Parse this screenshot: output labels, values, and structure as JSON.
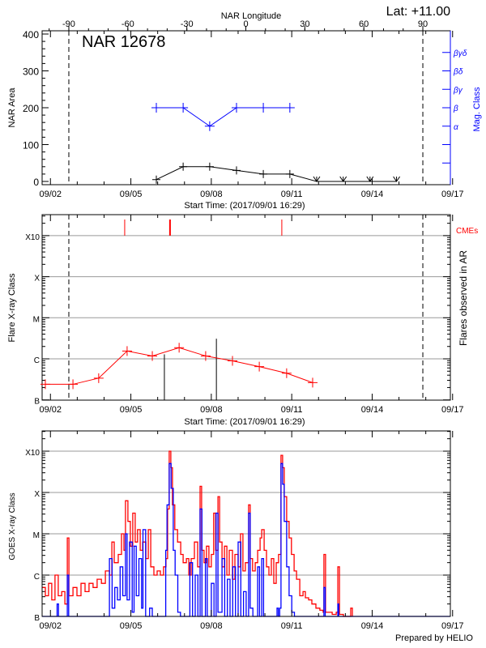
{
  "chart_data": [
    {
      "type": "line",
      "title": "NAR 12678",
      "corner_label": "Lat: +11.00",
      "top_axis_label": "NAR Longitude",
      "top_ticks": [
        "-90",
        "-60",
        "-30",
        "0",
        "30",
        "60",
        "90"
      ],
      "top_tick_values": [
        -90,
        -60,
        -30,
        0,
        30,
        60,
        90
      ],
      "xlabel": "Start Time: (2017/09/01 16:29)",
      "x_ticks": [
        "09/02",
        "09/05",
        "09/08",
        "09/11",
        "09/14",
        "09/17"
      ],
      "x_tick_days": [
        2,
        5,
        8,
        11,
        14,
        17
      ],
      "ylabel": "NAR Area",
      "y_ticks": [
        "0",
        "100",
        "200",
        "300",
        "400"
      ],
      "ylim": [
        0,
        400
      ],
      "y2label": "Mag. Class",
      "y2_ticks": [
        "α",
        "β",
        "βγ",
        "βδ",
        "βγδ"
      ],
      "limb_longitudes": [
        -90,
        90
      ],
      "colors": {
        "area": "#000000",
        "mag_class": "#0000ff"
      },
      "series": [
        {
          "x_day": [
            5.95,
            6.95,
            7.94,
            8.94,
            9.94,
            10.93,
            11.93,
            12.92,
            13.92,
            14.91
          ],
          "values": [
            5,
            40,
            40,
            30,
            20,
            20,
            0,
            0,
            0,
            0
          ]
        },
        {
          "x_day": [
            5.95,
            6.95,
            7.94,
            8.94,
            9.94,
            10.93
          ],
          "values": [
            "β",
            "β",
            "α",
            "β",
            "β",
            "β"
          ]
        }
      ]
    },
    {
      "type": "line",
      "xlabel": "Start Time: (2017/09/01 16:29)",
      "x_ticks": [
        "09/02",
        "09/05",
        "09/08",
        "09/11",
        "09/14",
        "09/17"
      ],
      "ylabel": "Flare X-ray Class",
      "y2label": "Flares observed in AR",
      "y_ticks": [
        "B",
        "C",
        "M",
        "X",
        "X10"
      ],
      "scale": "log",
      "grid": true,
      "cme_label": "CMEs",
      "colors": {
        "daily_max": "#ff0000",
        "flares": "#000000",
        "cmes": "#ff0000"
      },
      "daily_max": {
        "x_day": [
          1.81,
          2.84,
          3.8,
          4.86,
          5.8,
          6.8,
          7.79,
          8.79,
          9.79,
          10.81,
          11.78
        ],
        "log10_flux": [
          -6.62,
          -6.62,
          -6.47,
          -5.81,
          -5.93,
          -5.73,
          -5.93,
          -6.05,
          -6.19,
          -6.35,
          -6.58
        ]
      },
      "flares": {
        "x_day": [
          6.25,
          8.19
        ],
        "log10_flux": [
          -5.89,
          -5.51
        ]
      },
      "cmes": {
        "x_day": [
          4.77,
          6.46,
          10.63
        ],
        "strong": [
          false,
          true,
          false
        ]
      }
    },
    {
      "type": "line",
      "ylabel": "GOES X-ray Class",
      "x_ticks": [
        "09/02",
        "09/05",
        "09/08",
        "09/11",
        "09/14",
        "09/17"
      ],
      "y_ticks": [
        "B",
        "C",
        "M",
        "X",
        "X10"
      ],
      "scale": "log",
      "grid": true,
      "footer": "Prepared by HELIO",
      "colors": {
        "long": "#ff0000",
        "short": "#0000ff"
      },
      "long_channel": [
        [
          1.69,
          -6.3
        ],
        [
          1.81,
          -6.5
        ],
        [
          1.93,
          -6.2
        ],
        [
          2.05,
          -6.6
        ],
        [
          2.17,
          -6.0
        ],
        [
          2.29,
          -6.5
        ],
        [
          2.42,
          -6.4
        ],
        [
          2.54,
          -6.7
        ],
        [
          2.63,
          -5.1
        ],
        [
          2.69,
          -6.5
        ],
        [
          2.84,
          -6.3
        ],
        [
          2.99,
          -6.5
        ],
        [
          3.14,
          -6.2
        ],
        [
          3.29,
          -6.4
        ],
        [
          3.44,
          -6.2
        ],
        [
          3.59,
          -6.3
        ],
        [
          3.74,
          -6.1
        ],
        [
          3.9,
          -6.2
        ],
        [
          4.05,
          -5.9
        ],
        [
          4.2,
          -6.0
        ],
        [
          4.29,
          -5.2
        ],
        [
          4.38,
          -5.7
        ],
        [
          4.53,
          -5.5
        ],
        [
          4.65,
          -5.0
        ],
        [
          4.74,
          -5.4
        ],
        [
          4.8,
          -4.2
        ],
        [
          4.89,
          -4.7
        ],
        [
          4.98,
          -5.3
        ],
        [
          5.07,
          -4.5
        ],
        [
          5.16,
          -5.2
        ],
        [
          5.25,
          -4.9
        ],
        [
          5.35,
          -5.4
        ],
        [
          5.44,
          -5.2
        ],
        [
          5.56,
          -5.6
        ],
        [
          5.65,
          -4.9
        ],
        [
          5.74,
          -5.8
        ],
        [
          5.86,
          -6.0
        ],
        [
          5.98,
          -5.9
        ],
        [
          6.1,
          -6.0
        ],
        [
          6.22,
          -5.8
        ],
        [
          6.31,
          -5.6
        ],
        [
          6.37,
          -4.4
        ],
        [
          6.43,
          -3.0
        ],
        [
          6.49,
          -3.4
        ],
        [
          6.55,
          -4.3
        ],
        [
          6.64,
          -4.9
        ],
        [
          6.74,
          -5.2
        ],
        [
          6.86,
          -5.5
        ],
        [
          6.95,
          -5.7
        ],
        [
          7.07,
          -5.6
        ],
        [
          7.16,
          -6.0
        ],
        [
          7.25,
          -5.6
        ],
        [
          7.37,
          -5.2
        ],
        [
          7.49,
          -5.8
        ],
        [
          7.58,
          -3.85
        ],
        [
          7.64,
          -5.4
        ],
        [
          7.73,
          -5.7
        ],
        [
          7.82,
          -5.3
        ],
        [
          7.91,
          -5.8
        ],
        [
          8.0,
          -5.5
        ],
        [
          8.09,
          -4.5
        ],
        [
          8.16,
          -5.4
        ],
        [
          8.25,
          -4.1
        ],
        [
          8.31,
          -5.2
        ],
        [
          8.4,
          -5.8
        ],
        [
          8.49,
          -5.3
        ],
        [
          8.58,
          -6.0
        ],
        [
          8.67,
          -5.4
        ],
        [
          8.79,
          -6.1
        ],
        [
          8.88,
          -5.5
        ],
        [
          9.0,
          -5.8
        ],
        [
          9.09,
          -5.0
        ],
        [
          9.18,
          -5.9
        ],
        [
          9.27,
          -5.7
        ],
        [
          9.39,
          -4.3
        ],
        [
          9.45,
          -5.6
        ],
        [
          9.54,
          -5.9
        ],
        [
          9.64,
          -5.7
        ],
        [
          9.73,
          -5.4
        ],
        [
          9.82,
          -5.1
        ],
        [
          9.88,
          -4.9
        ],
        [
          9.97,
          -5.4
        ],
        [
          10.06,
          -5.8
        ],
        [
          10.15,
          -6.0
        ],
        [
          10.24,
          -5.6
        ],
        [
          10.33,
          -6.2
        ],
        [
          10.42,
          -5.7
        ],
        [
          10.51,
          -5.5
        ],
        [
          10.6,
          -3.1
        ],
        [
          10.66,
          -3.4
        ],
        [
          10.72,
          -4.1
        ],
        [
          10.81,
          -4.7
        ],
        [
          10.9,
          -5.1
        ],
        [
          10.99,
          -5.5
        ],
        [
          11.09,
          -5.9
        ],
        [
          11.18,
          -6.1
        ],
        [
          11.3,
          -6.5
        ],
        [
          11.42,
          -6.4
        ],
        [
          11.51,
          -6.55
        ],
        [
          11.63,
          -6.6
        ],
        [
          11.75,
          -6.7
        ],
        [
          11.9,
          -6.8
        ],
        [
          12.05,
          -6.85
        ],
        [
          12.17,
          -6.9
        ],
        [
          12.2,
          -5.5
        ],
        [
          12.26,
          -6.9
        ],
        [
          12.38,
          -6.9
        ],
        [
          12.51,
          -6.95
        ],
        [
          12.66,
          -6.9
        ],
        [
          12.72,
          -5.8
        ],
        [
          12.78,
          -6.95
        ],
        [
          12.93,
          -7.0
        ],
        [
          13.2,
          -6.8
        ],
        [
          13.26,
          -7.0
        ]
      ],
      "short_channel": [
        [
          1.69,
          -7.5
        ],
        [
          2.2,
          -7.5
        ],
        [
          2.25,
          -6.7
        ],
        [
          2.3,
          -7.5
        ],
        [
          2.6,
          -7.5
        ],
        [
          2.63,
          -6.0
        ],
        [
          2.68,
          -7.5
        ],
        [
          4.1,
          -7.5
        ],
        [
          4.2,
          -5.6
        ],
        [
          4.3,
          -6.8
        ],
        [
          4.4,
          -6.3
        ],
        [
          4.5,
          -6.6
        ],
        [
          4.6,
          -5.8
        ],
        [
          4.7,
          -6.5
        ],
        [
          4.8,
          -5.0
        ],
        [
          4.86,
          -6.6
        ],
        [
          4.95,
          -5.2
        ],
        [
          5.05,
          -6.9
        ],
        [
          5.12,
          -5.3
        ],
        [
          5.2,
          -6.5
        ],
        [
          5.3,
          -5.6
        ],
        [
          5.4,
          -6.8
        ],
        [
          5.45,
          -4.9
        ],
        [
          5.55,
          -7.5
        ],
        [
          5.7,
          -6.8
        ],
        [
          5.8,
          -7.5
        ],
        [
          6.2,
          -7.5
        ],
        [
          6.3,
          -5.4
        ],
        [
          6.35,
          -4.3
        ],
        [
          6.43,
          -3.3
        ],
        [
          6.5,
          -3.9
        ],
        [
          6.58,
          -5.4
        ],
        [
          6.65,
          -6.0
        ],
        [
          6.75,
          -6.9
        ],
        [
          6.85,
          -7.5
        ],
        [
          7.15,
          -7.5
        ],
        [
          7.2,
          -5.7
        ],
        [
          7.3,
          -7.5
        ],
        [
          7.4,
          -6.0
        ],
        [
          7.5,
          -7.3
        ],
        [
          7.58,
          -4.4
        ],
        [
          7.65,
          -7.3
        ],
        [
          7.78,
          -5.6
        ],
        [
          7.85,
          -7.0
        ],
        [
          8.0,
          -6.2
        ],
        [
          8.1,
          -7.2
        ],
        [
          8.18,
          -4.5
        ],
        [
          8.25,
          -6.9
        ],
        [
          8.4,
          -5.6
        ],
        [
          8.5,
          -7.3
        ],
        [
          8.6,
          -6.1
        ],
        [
          8.7,
          -7.4
        ],
        [
          8.8,
          -5.8
        ],
        [
          8.9,
          -7.3
        ],
        [
          9.0,
          -5.2
        ],
        [
          9.1,
          -7.3
        ],
        [
          9.2,
          -6.4
        ],
        [
          9.3,
          -7.4
        ],
        [
          9.39,
          -4.5
        ],
        [
          9.45,
          -6.8
        ],
        [
          9.55,
          -7.5
        ],
        [
          9.73,
          -5.8
        ],
        [
          9.8,
          -7.3
        ],
        [
          9.88,
          -5.6
        ],
        [
          9.95,
          -7.2
        ],
        [
          10.1,
          -7.5
        ],
        [
          10.45,
          -6.8
        ],
        [
          10.5,
          -7.5
        ],
        [
          10.55,
          -6.8
        ],
        [
          10.6,
          -3.3
        ],
        [
          10.66,
          -3.8
        ],
        [
          10.72,
          -4.7
        ],
        [
          10.81,
          -5.8
        ],
        [
          10.9,
          -6.5
        ],
        [
          11.0,
          -6.9
        ],
        [
          11.1,
          -7.5
        ],
        [
          12.15,
          -7.5
        ],
        [
          12.2,
          -6.3
        ],
        [
          12.25,
          -7.5
        ],
        [
          12.7,
          -7.5
        ],
        [
          12.72,
          -6.7
        ],
        [
          12.75,
          -7.5
        ],
        [
          16.9,
          -7.5
        ]
      ]
    }
  ]
}
